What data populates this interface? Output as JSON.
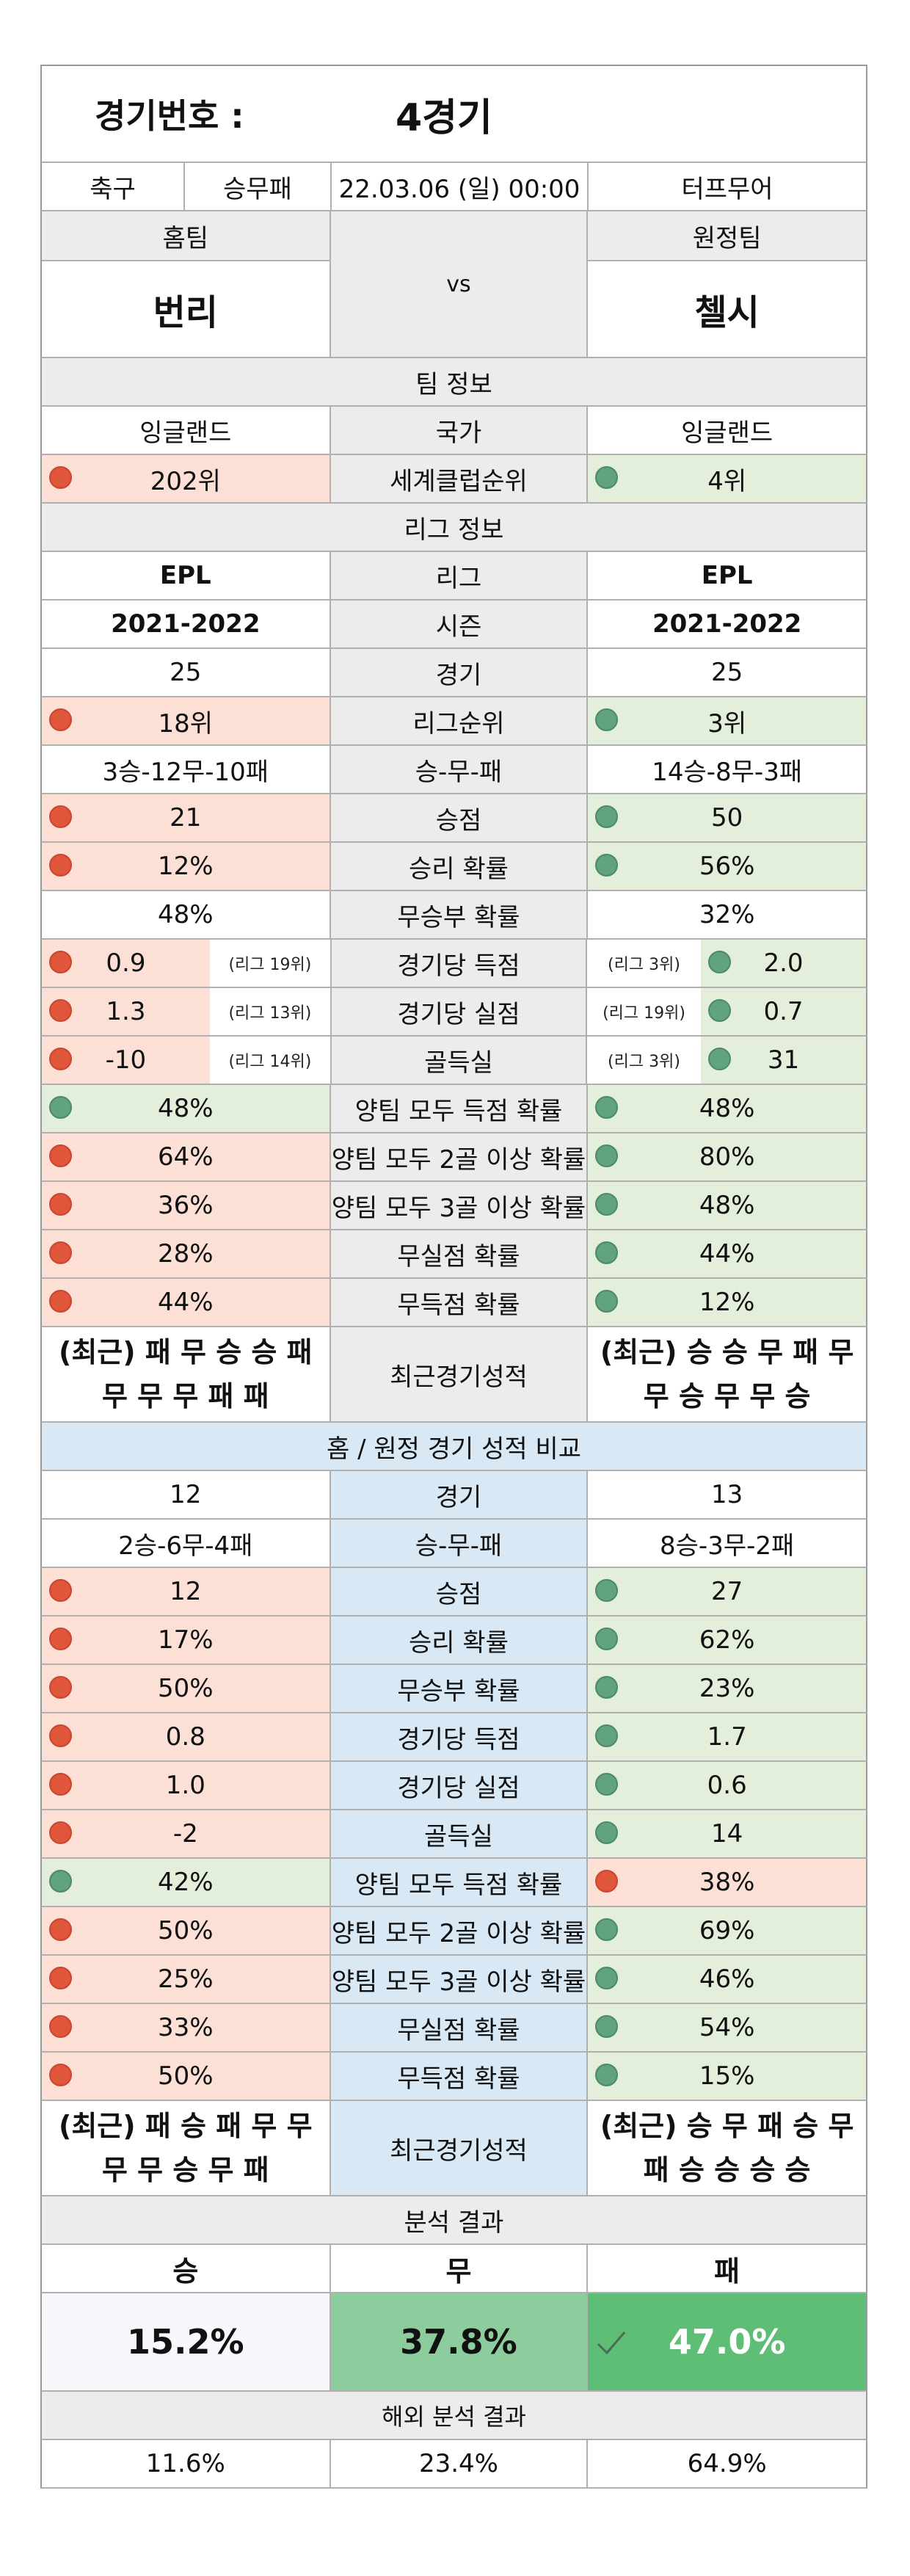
{
  "header": {
    "label": "경기번호 :",
    "value": "4경기"
  },
  "info": {
    "sport": "축구",
    "bet_type": "승무패",
    "datetime": "22.03.06 (일) 00:00",
    "venue": "터프무어"
  },
  "teams": {
    "home_label": "홈팀",
    "away_label": "원정팀",
    "vs": "vs",
    "home": "번리",
    "away": "첼시"
  },
  "team_info": {
    "title": "팀 정보",
    "rows": [
      {
        "label": "국가",
        "home": "잉글랜드",
        "away": "잉글랜드",
        "home_dot": "",
        "away_dot": ""
      },
      {
        "label": "세계클럽순위",
        "home": "202위",
        "away": "4위",
        "home_dot": "red",
        "away_dot": "green"
      }
    ]
  },
  "league_info": {
    "title": "리그 정보",
    "rows": [
      {
        "label": "리그",
        "home": "EPL",
        "away": "EPL",
        "home_dot": "",
        "away_dot": "",
        "bold": true
      },
      {
        "label": "시즌",
        "home": "2021-2022",
        "away": "2021-2022",
        "home_dot": "",
        "away_dot": "",
        "bold": true
      },
      {
        "label": "경기",
        "home": "25",
        "away": "25",
        "home_dot": "",
        "away_dot": ""
      },
      {
        "label": "리그순위",
        "home": "18위",
        "away": "3위",
        "home_dot": "red",
        "away_dot": "green"
      },
      {
        "label": "승-무-패",
        "home": "3승-12무-10패",
        "away": "14승-8무-3패",
        "home_dot": "",
        "away_dot": ""
      },
      {
        "label": "승점",
        "home": "21",
        "away": "50",
        "home_dot": "red",
        "away_dot": "green"
      },
      {
        "label": "승리 확률",
        "home": "12%",
        "away": "56%",
        "home_dot": "red",
        "away_dot": "green"
      },
      {
        "label": "무승부 확률",
        "home": "48%",
        "away": "32%",
        "home_dot": "",
        "away_dot": ""
      }
    ],
    "ranked_rows": [
      {
        "label": "경기당 득점",
        "home": "0.9",
        "home_rank": "(리그 19위)",
        "away": "2.0",
        "away_rank": "(리그 3위)"
      },
      {
        "label": "경기당 실점",
        "home": "1.3",
        "home_rank": "(리그 13위)",
        "away": "0.7",
        "away_rank": "(리그 19위)"
      },
      {
        "label": "골득실",
        "home": "-10",
        "home_rank": "(리그 14위)",
        "away": "31",
        "away_rank": "(리그 3위)"
      }
    ],
    "prob_rows": [
      {
        "label": "양팀 모두 득점 확률",
        "home": "48%",
        "away": "48%",
        "home_dot": "green",
        "away_dot": "green"
      },
      {
        "label": "양팀 모두 2골 이상 확률",
        "home": "64%",
        "away": "80%",
        "home_dot": "red",
        "away_dot": "green"
      },
      {
        "label": "양팀 모두 3골 이상 확률",
        "home": "36%",
        "away": "48%",
        "home_dot": "red",
        "away_dot": "green"
      },
      {
        "label": "무실점 확률",
        "home": "28%",
        "away": "44%",
        "home_dot": "red",
        "away_dot": "green"
      },
      {
        "label": "무득점 확률",
        "home": "44%",
        "away": "12%",
        "home_dot": "red",
        "away_dot": "green"
      }
    ],
    "recent": {
      "label": "최근경기성적",
      "home_line1": "(최근) 패 무 승 승 패",
      "home_line2": "무 무 무 패 패",
      "away_line1": "(최근) 승 승 무 패 무",
      "away_line2": "무 승 무 무 승"
    }
  },
  "home_away": {
    "title": "홈 / 원정 경기 성적 비교",
    "rows": [
      {
        "label": "경기",
        "home": "12",
        "away": "13",
        "home_dot": "",
        "away_dot": ""
      },
      {
        "label": "승-무-패",
        "home": "2승-6무-4패",
        "away": "8승-3무-2패",
        "home_dot": "",
        "away_dot": ""
      },
      {
        "label": "승점",
        "home": "12",
        "away": "27",
        "home_dot": "red",
        "away_dot": "green"
      },
      {
        "label": "승리 확률",
        "home": "17%",
        "away": "62%",
        "home_dot": "red",
        "away_dot": "green"
      },
      {
        "label": "무승부 확률",
        "home": "50%",
        "away": "23%",
        "home_dot": "red",
        "away_dot": "green"
      },
      {
        "label": "경기당 득점",
        "home": "0.8",
        "away": "1.7",
        "home_dot": "red",
        "away_dot": "green"
      },
      {
        "label": "경기당 실점",
        "home": "1.0",
        "away": "0.6",
        "home_dot": "red",
        "away_dot": "green"
      },
      {
        "label": "골득실",
        "home": "-2",
        "away": "14",
        "home_dot": "red",
        "away_dot": "green"
      },
      {
        "label": "양팀 모두 득점 확률",
        "home": "42%",
        "away": "38%",
        "home_dot": "green",
        "away_dot": "red"
      },
      {
        "label": "양팀 모두 2골 이상 확률",
        "home": "50%",
        "away": "69%",
        "home_dot": "red",
        "away_dot": "green"
      },
      {
        "label": "양팀 모두 3골 이상 확률",
        "home": "25%",
        "away": "46%",
        "home_dot": "red",
        "away_dot": "green"
      },
      {
        "label": "무실점 확률",
        "home": "33%",
        "away": "54%",
        "home_dot": "red",
        "away_dot": "green"
      },
      {
        "label": "무득점 확률",
        "home": "50%",
        "away": "15%",
        "home_dot": "red",
        "away_dot": "green"
      }
    ],
    "recent": {
      "label": "최근경기성적",
      "home_line1": "(최근) 패 승 패 무 무",
      "home_line2": "무 무 승 무 패",
      "away_line1": "(최근) 승 무 패 승 무",
      "away_line2": "패 승 승 승 승"
    }
  },
  "analysis": {
    "title": "분석 결과",
    "labels": {
      "win": "승",
      "draw": "무",
      "lose": "패"
    },
    "values": {
      "win": "15.2%",
      "draw": "37.8%",
      "lose": "47.0%"
    },
    "pick_icon": "checkmark-icon",
    "colors": {
      "win": "#f8f8fc",
      "draw": "#8dcc9c",
      "lose": "#5fbe75"
    }
  },
  "overseas": {
    "title": "해외 분석 결과",
    "values": {
      "win": "11.6%",
      "draw": "23.4%",
      "lose": "64.9%"
    }
  }
}
